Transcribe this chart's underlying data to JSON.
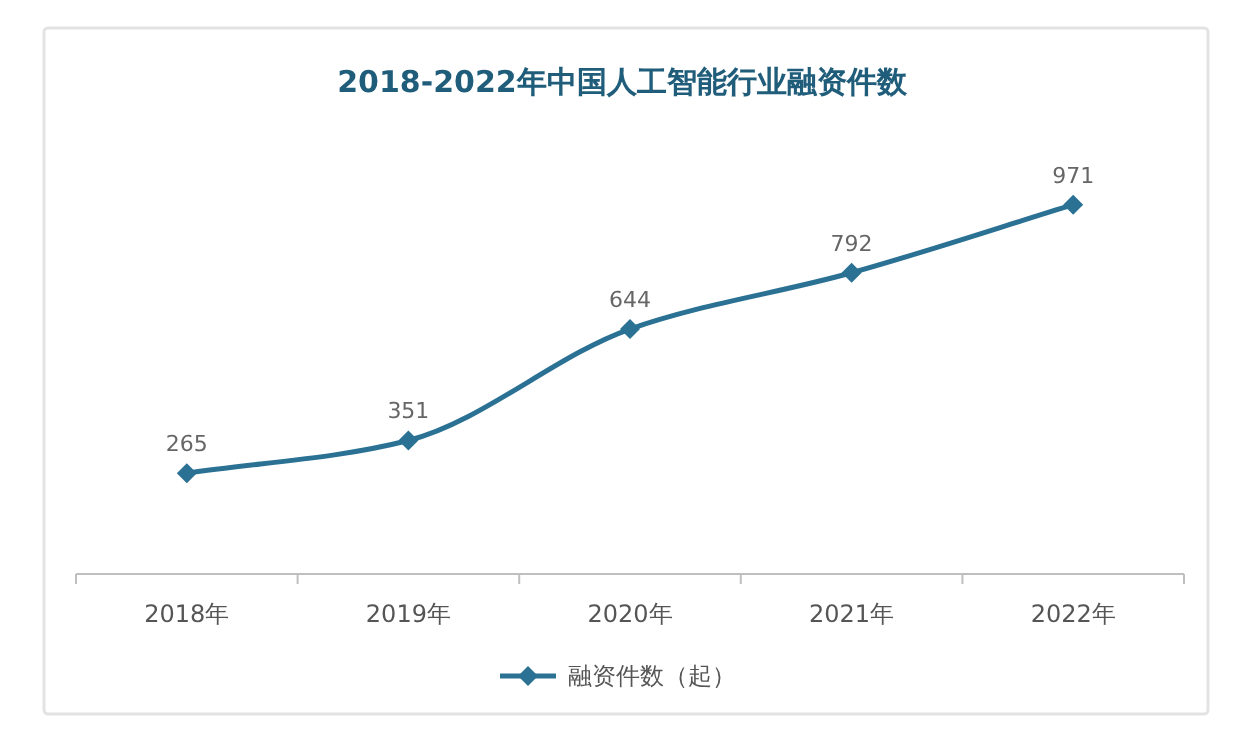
{
  "chart_data": {
    "type": "line",
    "title": "2018-2022年中国人工智能行业融资件数",
    "categories": [
      "2018年",
      "2019年",
      "2020年",
      "2021年",
      "2022年"
    ],
    "series": [
      {
        "name": "融资件数（起）",
        "color": "#2a7194",
        "values": [
          265,
          351,
          644,
          792,
          971
        ]
      }
    ],
    "tick_labels": "x",
    "data_labels": true,
    "marker": "diamond",
    "legend": "bottom",
    "grid": false
  }
}
